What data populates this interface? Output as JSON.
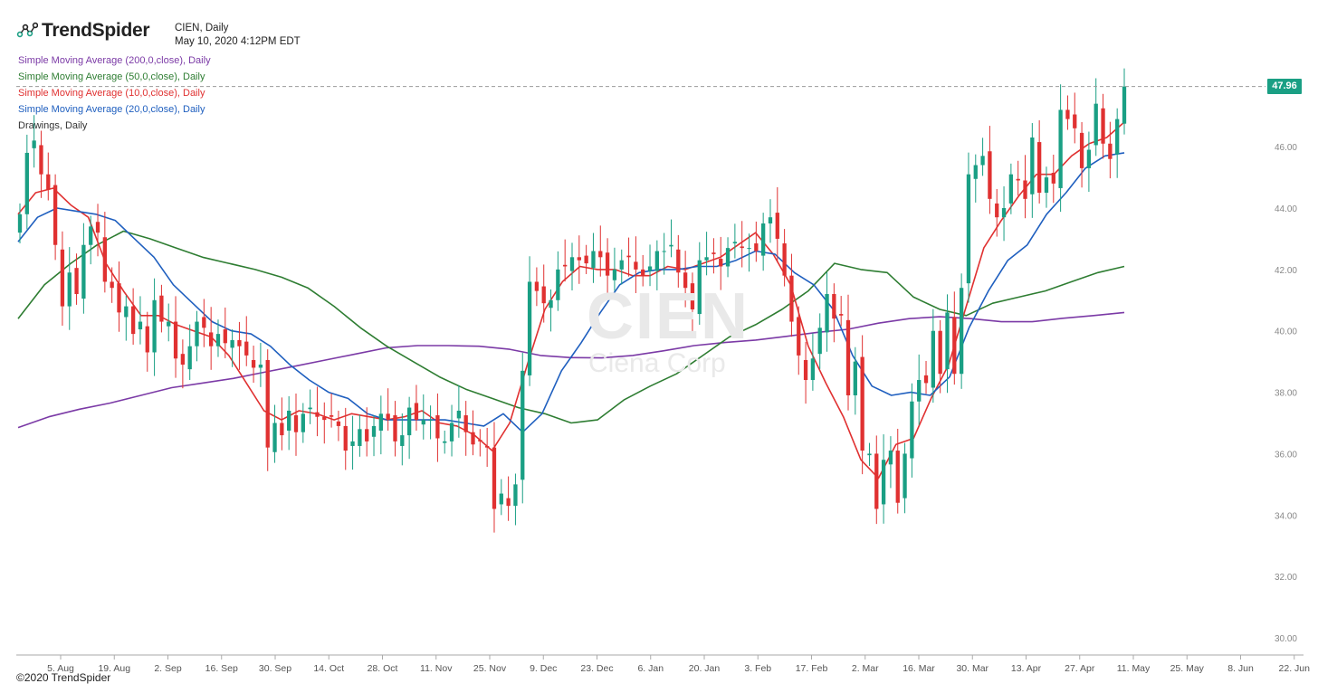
{
  "header": {
    "brand": "TrendSpider",
    "symbol_line": "CIEN, Daily",
    "timestamp": "May 10, 2020 4:12PM EDT"
  },
  "legend": [
    {
      "label": "Simple Moving Average (200,0,close), Daily",
      "color": "#7b3aa6"
    },
    {
      "label": "Simple Moving Average (50,0,close), Daily",
      "color": "#2e7d32"
    },
    {
      "label": "Simple Moving Average (10,0,close), Daily",
      "color": "#e03131"
    },
    {
      "label": "Simple Moving Average (20,0,close), Daily",
      "color": "#1f5fbf"
    },
    {
      "label": "Drawings, Daily",
      "color": "#333333"
    }
  ],
  "watermark": {
    "symbol": "CIEN",
    "name": "Ciena Corp"
  },
  "last_price_label": "47.96",
  "copyright": "©2020 TrendSpider",
  "colors": {
    "up": "#1a9f84",
    "down": "#e03131",
    "axis": "#888888"
  },
  "chart_data": {
    "type": "candlestick",
    "y_ticks": [
      "30.00",
      "32.00",
      "34.00",
      "36.00",
      "38.00",
      "40.00",
      "42.00",
      "44.00",
      "46.00"
    ],
    "ylim": [
      29.5,
      49.6
    ],
    "x_ticks": [
      "5. Aug",
      "19. Aug",
      "2. Sep",
      "16. Sep",
      "30. Sep",
      "14. Oct",
      "28. Oct",
      "11. Nov",
      "25. Nov",
      "9. Dec",
      "23. Dec",
      "6. Jan",
      "20. Jan",
      "3. Feb",
      "17. Feb",
      "2. Mar",
      "16. Mar",
      "30. Mar",
      "13. Apr",
      "27. Apr",
      "11. May",
      "25. May",
      "8. Jun",
      "22. Jun"
    ],
    "last_price": 47.96,
    "closes": [
      43.8,
      45.8,
      46.2,
      45.1,
      44.6,
      42.8,
      40.8,
      41.9,
      41.2,
      42.8,
      43.4,
      43.2,
      41.6,
      41.4,
      40.6,
      40.8,
      39.9,
      40.3,
      39.3,
      41.0,
      40.3,
      40.3,
      39.1,
      38.9,
      39.5,
      40.3,
      40.1,
      39.5,
      39.9,
      39.6,
      39.7,
      39.5,
      39.2,
      38.8,
      38.9,
      36.2,
      37.0,
      36.6,
      37.4,
      36.7,
      37.3,
      37.5,
      37.2,
      37.1,
      37.2,
      36.9,
      36.1,
      36.4,
      36.8,
      36.4,
      36.9,
      37.3,
      37.1,
      36.4,
      36.6,
      37.5,
      37.1,
      37.1,
      37.1,
      36.5,
      36.4,
      37.0,
      37.4,
      36.7,
      36.3,
      36.4,
      36.2,
      34.2,
      34.7,
      34.3,
      35.0,
      38.7,
      41.6,
      41.3,
      40.9,
      41.0,
      42.0,
      42.1,
      42.4,
      42.3,
      42.2,
      42.6,
      42.4,
      41.8,
      42.0,
      42.3,
      42.4,
      42.0,
      41.8,
      42.1,
      42.6,
      42.6,
      42.8,
      41.9,
      41.4,
      40.7,
      42.3,
      42.4,
      42.5,
      42.1,
      42.7,
      42.9,
      42.7,
      42.7,
      42.6,
      43.5,
      43.7,
      43.0,
      41.8,
      40.3,
      39.2,
      38.4,
      39.1,
      40.1,
      41.2,
      40.4,
      40.5,
      37.9,
      39.0,
      36.1,
      36.0,
      34.2,
      35.8,
      36.1,
      34.4,
      36.0,
      37.7,
      38.4,
      38.3,
      40.0,
      38.6,
      40.6,
      38.6,
      41.4,
      45.1,
      45.4,
      45.7,
      44.3,
      43.7,
      44.0,
      45.1,
      44.9,
      44.3,
      46.3,
      44.5,
      45.0,
      44.8,
      47.2,
      46.9,
      46.6,
      45.3,
      45.9,
      47.4,
      46.1,
      45.6,
      46.9,
      47.96
    ],
    "series": [
      {
        "name": "Simple Moving Average (200,0,close), Daily",
        "values": [
          36.85,
          37.2,
          37.45,
          37.65,
          37.9,
          38.15,
          38.3,
          38.45,
          38.65,
          38.85,
          39.05,
          39.25,
          39.45,
          39.52,
          39.52,
          39.5,
          39.4,
          39.2,
          39.13,
          39.12,
          39.2,
          39.35,
          39.52,
          39.62,
          39.7,
          39.82,
          39.95,
          40.05,
          40.25,
          40.4,
          40.46,
          40.4,
          40.3,
          40.3,
          40.41,
          40.5,
          40.6
        ]
      },
      {
        "name": "Simple Moving Average (50,0,close), Daily",
        "values": [
          40.4,
          41.5,
          42.2,
          42.8,
          43.25,
          43.0,
          42.7,
          42.4,
          42.2,
          42.0,
          41.75,
          41.4,
          40.8,
          40.1,
          39.5,
          39.0,
          38.5,
          38.1,
          37.8,
          37.5,
          37.3,
          37.0,
          37.1,
          37.75,
          38.2,
          38.6,
          39.2,
          39.8,
          40.2,
          40.7,
          41.3,
          42.2,
          42.0,
          41.9,
          41.1,
          40.7,
          40.5,
          40.9,
          41.1,
          41.3,
          41.6,
          41.9,
          42.1
        ]
      },
      {
        "name": "Simple Moving Average (10,0,close), Daily",
        "values": [
          43.8,
          44.5,
          44.65,
          44.1,
          43.7,
          42.2,
          41.3,
          40.5,
          40.5,
          40.2,
          40.0,
          39.8,
          39.2,
          38.3,
          37.4,
          37.1,
          37.4,
          37.3,
          37.1,
          37.3,
          37.2,
          37.1,
          37.2,
          37.4,
          37.0,
          36.9,
          36.6,
          36.1,
          37.0,
          38.9,
          40.7,
          41.6,
          42.1,
          42.0,
          42.0,
          41.8,
          41.8,
          42.1,
          42.0,
          42.2,
          42.4,
          42.8,
          43.2,
          42.5,
          41.5,
          39.5,
          38.3,
          37.2,
          35.8,
          35.2,
          36.3,
          36.5,
          37.8,
          38.9,
          40.8,
          42.7,
          43.6,
          44.4,
          45.1,
          45.1,
          45.7,
          46.1,
          46.3,
          46.8
        ]
      },
      {
        "name": "Simple Moving Average (20,0,close), Daily",
        "values": [
          42.9,
          43.7,
          44.0,
          43.9,
          43.8,
          43.6,
          43.0,
          42.4,
          41.5,
          40.9,
          40.3,
          40.0,
          39.9,
          39.5,
          38.9,
          38.4,
          38.0,
          37.8,
          37.3,
          37.1,
          37.1,
          37.1,
          37.1,
          37.0,
          36.9,
          37.3,
          36.7,
          37.3,
          38.7,
          39.6,
          40.6,
          41.5,
          41.9,
          42.0,
          42.0,
          42.1,
          42.1,
          42.3,
          42.6,
          42.5,
          41.9,
          41.5,
          40.7,
          39.2,
          38.2,
          37.9,
          38.0,
          37.9,
          38.5,
          40.1,
          41.3,
          42.3,
          42.8,
          43.8,
          44.5,
          45.3,
          45.7,
          45.8
        ]
      }
    ]
  }
}
